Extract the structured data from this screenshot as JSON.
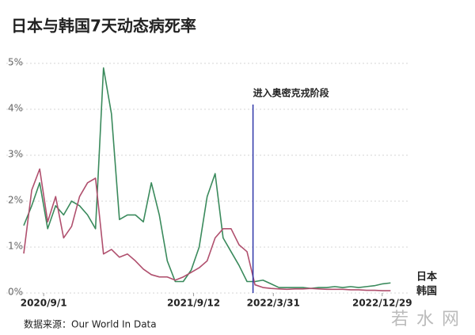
{
  "chart_data": {
    "type": "line",
    "title": "日本与韩国7天动态病死率",
    "source": "数据来源：Our World In Data",
    "watermark": "若水网",
    "annotation": {
      "text": "进入奥密克戎阶段",
      "x": "2022/2/8"
    },
    "x": [
      "2020/7/13",
      "2020/8/2",
      "2020/8/22",
      "2020/9/11",
      "2020/10/1",
      "2020/10/21",
      "2020/11/10",
      "2020/11/30",
      "2020/12/20",
      "2021/1/9",
      "2021/1/29",
      "2021/2/18",
      "2021/3/10",
      "2021/3/30",
      "2021/4/19",
      "2021/5/9",
      "2021/5/29",
      "2021/6/18",
      "2021/7/8",
      "2021/7/28",
      "2021/8/17",
      "2021/9/6",
      "2021/9/26",
      "2021/10/16",
      "2021/11/5",
      "2021/11/25",
      "2021/12/15",
      "2022/1/4",
      "2022/1/24",
      "2022/2/13",
      "2022/3/5",
      "2022/3/25",
      "2022/4/14",
      "2022/5/4",
      "2022/5/24",
      "2022/6/13",
      "2022/7/3",
      "2022/7/23",
      "2022/8/12",
      "2022/9/1",
      "2022/9/21",
      "2022/10/11",
      "2022/10/31",
      "2022/11/20",
      "2022/12/10",
      "2022/12/30",
      "2023/1/19"
    ],
    "series": [
      {
        "name": "日本",
        "color": "#3a8a5c",
        "values": [
          1.47,
          1.9,
          2.4,
          1.4,
          1.9,
          1.7,
          2.0,
          1.9,
          1.7,
          1.4,
          4.9,
          3.9,
          1.6,
          1.7,
          1.7,
          1.55,
          2.4,
          1.7,
          0.7,
          0.25,
          0.25,
          0.5,
          1.0,
          2.1,
          2.6,
          1.2,
          0.9,
          0.6,
          0.25,
          0.25,
          0.28,
          0.2,
          0.12,
          0.12,
          0.12,
          0.12,
          0.1,
          0.12,
          0.12,
          0.14,
          0.12,
          0.14,
          0.12,
          0.14,
          0.16,
          0.2,
          0.22
        ]
      },
      {
        "name": "韩国",
        "color": "#b0506e",
        "values": [
          0.86,
          2.24,
          2.7,
          1.55,
          2.1,
          1.2,
          1.45,
          2.1,
          2.4,
          2.5,
          0.85,
          0.95,
          0.78,
          0.85,
          0.7,
          0.52,
          0.4,
          0.35,
          0.35,
          0.28,
          0.35,
          0.45,
          0.55,
          0.7,
          1.2,
          1.4,
          1.4,
          1.05,
          0.9,
          0.18,
          0.12,
          0.1,
          0.09,
          0.08,
          0.09,
          0.09,
          0.1,
          0.09,
          0.08,
          0.08,
          0.08,
          0.07,
          0.07,
          0.06,
          0.06,
          0.05,
          0.05
        ]
      }
    ],
    "xlim": [
      "2020/7/13",
      "2023/3/3"
    ],
    "xticks": [
      "2020/9/1",
      "2021/9/12",
      "2022/3/31",
      "2022/12/29"
    ],
    "ylim": [
      0,
      5
    ],
    "yticks": [
      {
        "value": 0,
        "label": "0%"
      },
      {
        "value": 1,
        "label": "1%"
      },
      {
        "value": 2,
        "label": "2%"
      },
      {
        "value": 3,
        "label": "3%"
      },
      {
        "value": 4,
        "label": "4%"
      },
      {
        "value": 5,
        "label": "5%"
      }
    ],
    "grid": true,
    "annotation_color": "#2f36a8"
  }
}
